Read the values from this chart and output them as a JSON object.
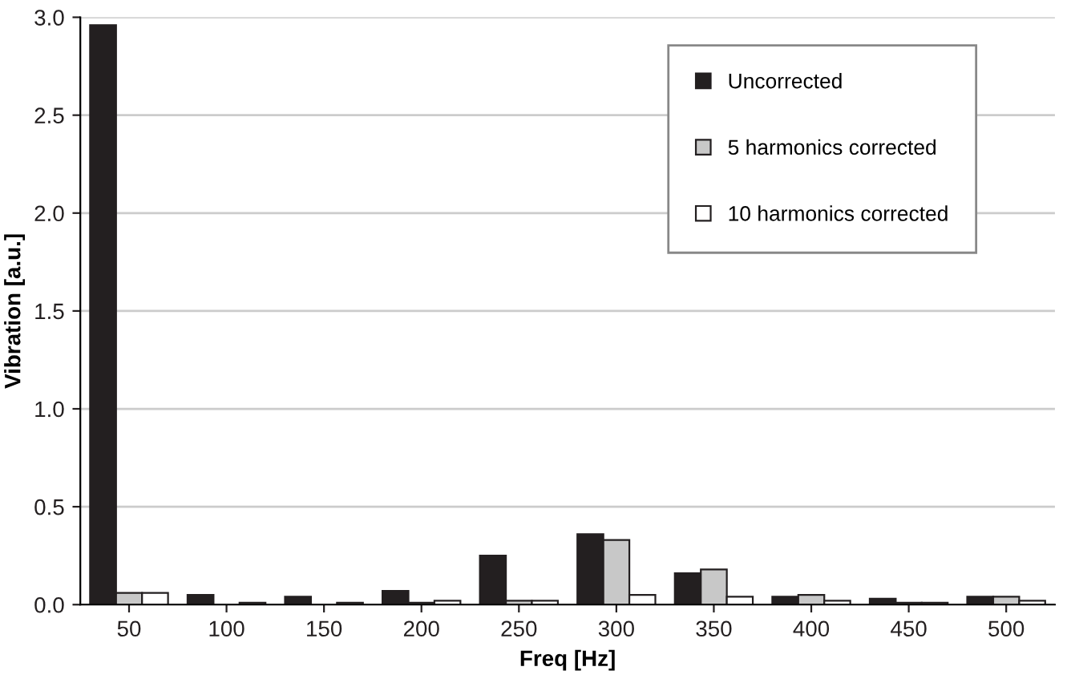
{
  "chart_data": {
    "type": "bar",
    "xlabel": "Freq [Hz]",
    "ylabel": "Vibration [a.u.]",
    "categories": [
      "50",
      "100",
      "150",
      "200",
      "250",
      "300",
      "350",
      "400",
      "450",
      "500"
    ],
    "series": [
      {
        "name": "Uncorrected",
        "color": "#231f20",
        "values": [
          2.96,
          0.05,
          0.04,
          0.07,
          0.25,
          0.36,
          0.16,
          0.04,
          0.03,
          0.04
        ]
      },
      {
        "name": "5 harmonics corrected",
        "color": "#c8c8c8",
        "values": [
          0.06,
          null,
          null,
          0.01,
          0.02,
          0.33,
          0.18,
          0.05,
          0.01,
          0.04
        ]
      },
      {
        "name": "10 harmonics corrected",
        "color": "#ffffff",
        "values": [
          0.06,
          0.01,
          0.01,
          0.02,
          0.02,
          0.05,
          0.04,
          0.02,
          0.01,
          0.02
        ]
      }
    ],
    "ylim": [
      0,
      3.0
    ],
    "yticks": [
      {
        "value": 0,
        "label": "0.0"
      },
      {
        "value": 0.5,
        "label": "0.5"
      },
      {
        "value": 1.0,
        "label": "1.0"
      },
      {
        "value": 1.5,
        "label": "1.5"
      },
      {
        "value": 2.0,
        "label": "2.0"
      },
      {
        "value": 2.5,
        "label": "2.5"
      },
      {
        "value": 3.0,
        "label": "3.0"
      }
    ],
    "grid": "y",
    "legend": "top right"
  }
}
